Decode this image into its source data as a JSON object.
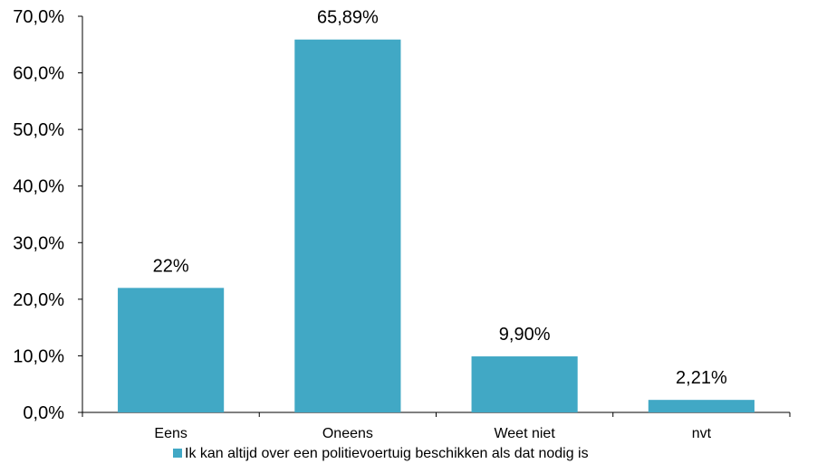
{
  "chart_data": {
    "type": "bar",
    "categories": [
      "Eens",
      "Oneens",
      "Weet niet",
      "nvt"
    ],
    "series": [
      {
        "name": "Ik kan altijd over een politievoertuig beschikken als dat nodig is",
        "values": [
          22,
          65.89,
          9.9,
          2.21
        ],
        "data_labels": [
          "22%",
          "65,89%",
          "9,90%",
          "2,21%"
        ],
        "color": "#41A8C5"
      }
    ],
    "ylim": [
      0,
      70
    ],
    "yticks": [
      0,
      10,
      20,
      30,
      40,
      50,
      60,
      70
    ],
    "ytick_labels": [
      "0,0%",
      "10,0%",
      "20,0%",
      "30,0%",
      "40,0%",
      "50,0%",
      "60,0%",
      "70,0%"
    ],
    "grid": false,
    "legend_position": "bottom"
  }
}
